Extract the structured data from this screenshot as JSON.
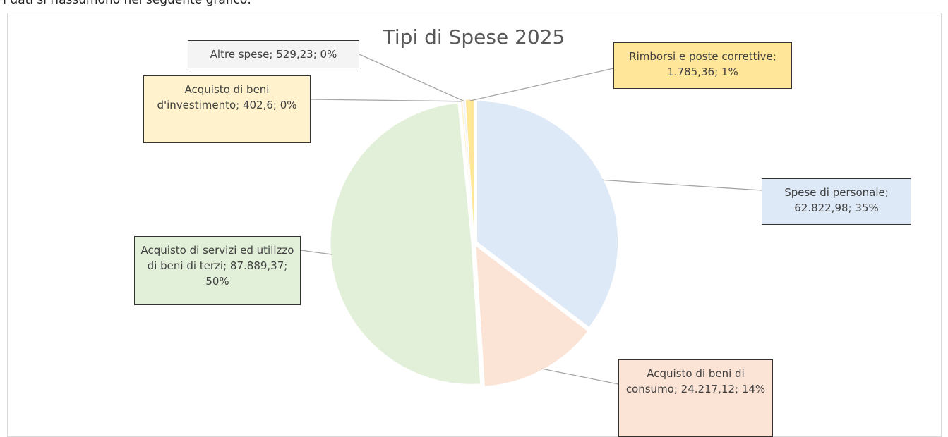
{
  "intro": "I dati si riassumono nel seguente grafico:",
  "chart_data": {
    "type": "pie",
    "title": "Tipi di Spese 2025",
    "categories": [
      "Spese di personale",
      "Acquisto di beni di consumo",
      "Acquisto di servizi ed utilizzo di beni di terzi",
      "Acquisto di beni d'investimento",
      "Altre spese",
      "Rimborsi e poste correttive"
    ],
    "values": [
      62822.98,
      24217.12,
      87889.37,
      402.6,
      529.23,
      1785.36
    ],
    "value_labels": [
      "Spese di personale; 62.822,98; 35%",
      "Acquisto di beni di consumo; 24.217,12; 14%",
      "Acquisto di servizi ed utilizzo di beni di terzi; 87.889,37; 50%",
      "Acquisto di beni d'investimento; 402,6; 0%",
      "Altre spese; 529,23; 0%",
      "Rimborsi e poste correttive; 1.785,36; 1%"
    ],
    "colors": [
      "#dde9f6",
      "#fbe3d5",
      "#e2efd9",
      "#fff2cc",
      "#f4f4f4",
      "#ffe699"
    ]
  }
}
